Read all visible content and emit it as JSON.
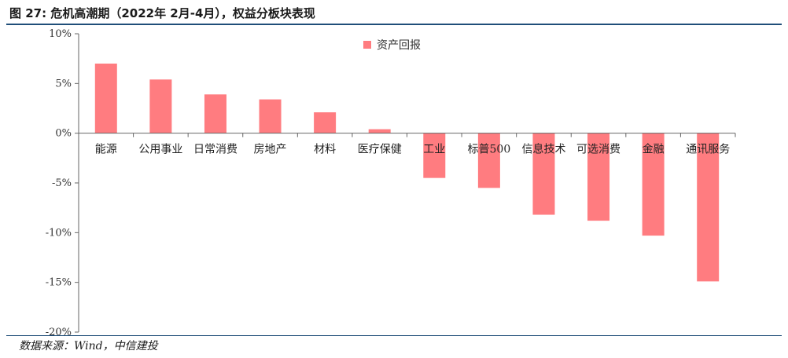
{
  "figure": {
    "title": "图 27: 危机高潮期（2022年 2月-4月），权益分板块表现",
    "source": "数据来源：Wind，中信建投"
  },
  "chart_data": {
    "type": "bar",
    "title": "",
    "xlabel": "",
    "ylabel": "",
    "ylim": [
      -20,
      10
    ],
    "yticks": [
      10,
      5,
      0,
      -5,
      -10,
      -15,
      -20
    ],
    "ytick_format": "percent",
    "grid": false,
    "legend": "top-center",
    "bar_color": "#ff7c80",
    "categories": [
      "能源",
      "公用事业",
      "日常消费",
      "房地产",
      "材料",
      "医疗保健",
      "工业",
      "标普500",
      "信息技术",
      "可选消费",
      "金融",
      "通讯服务"
    ],
    "series": [
      {
        "name": "资产回报",
        "values": [
          7.0,
          5.4,
          3.9,
          3.4,
          2.1,
          0.4,
          -4.5,
          -5.5,
          -8.2,
          -8.8,
          -10.3,
          -14.9
        ]
      }
    ]
  }
}
